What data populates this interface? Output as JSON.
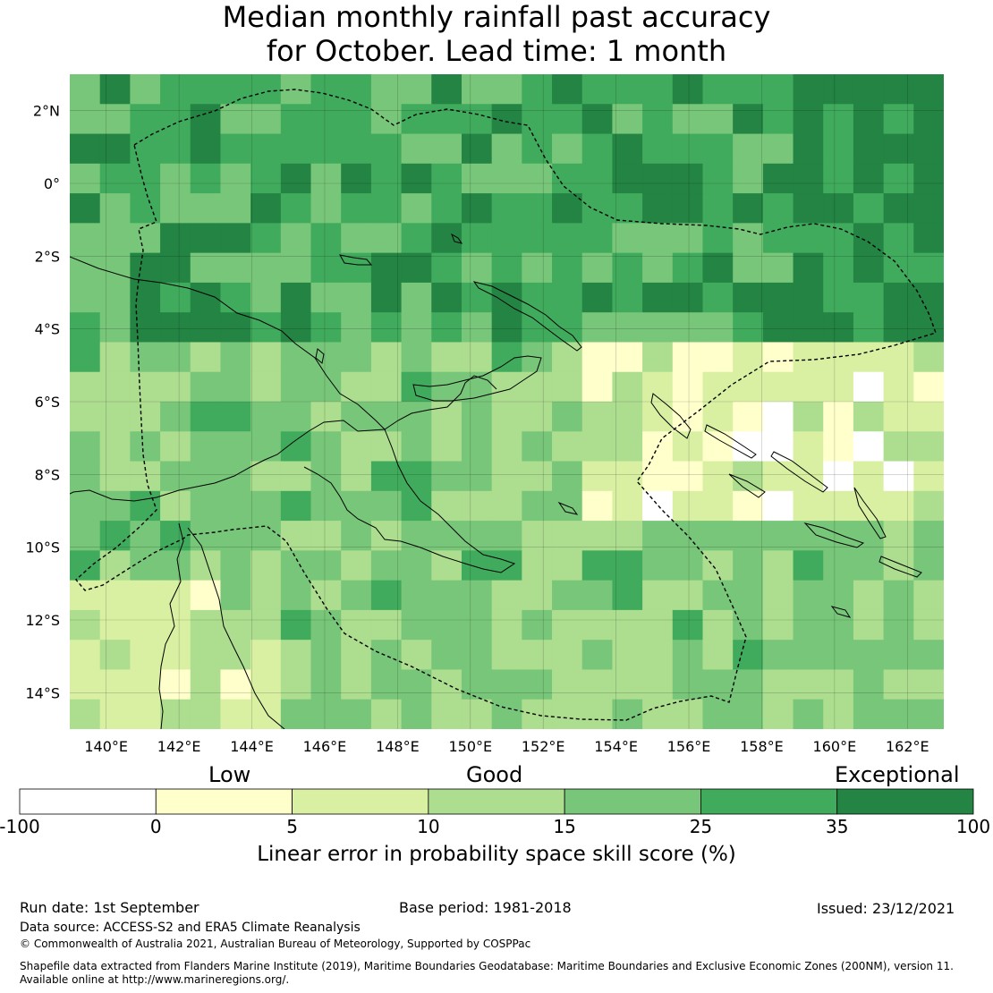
{
  "title": {
    "line1": "Median monthly rainfall past accuracy",
    "line2": "for October. Lead time: 1 month"
  },
  "map": {
    "lon_labels": [
      "140°E",
      "142°E",
      "144°E",
      "146°E",
      "148°E",
      "150°E",
      "152°E",
      "154°E",
      "156°E",
      "158°E",
      "160°E",
      "162°E"
    ],
    "lat_labels": [
      "2°N",
      "0°",
      "2°S",
      "4°S",
      "6°S",
      "8°S",
      "10°S",
      "12°S",
      "14°S"
    ],
    "lon_range": [
      139,
      163
    ],
    "lat_range": [
      -15,
      3
    ]
  },
  "legend": {
    "categories": [
      "Low",
      "Good",
      "Exceptional"
    ],
    "bins": [
      {
        "from": -100,
        "to": 0,
        "color": "#ffffff"
      },
      {
        "from": 0,
        "to": 5,
        "color": "#ffffcc"
      },
      {
        "from": 5,
        "to": 10,
        "color": "#d9f0a3"
      },
      {
        "from": 10,
        "to": 15,
        "color": "#addd8e"
      },
      {
        "from": 15,
        "to": 25,
        "color": "#78c679"
      },
      {
        "from": 25,
        "to": 35,
        "color": "#41ab5d"
      },
      {
        "from": 35,
        "to": 100,
        "color": "#238443"
      }
    ],
    "ticks": [
      "-100",
      "0",
      "5",
      "10",
      "15",
      "25",
      "35",
      "100"
    ],
    "title": "Linear error in probability space skill score (%)"
  },
  "footer": {
    "run_date": "Run date: 1st September",
    "base_period": "Base period: 1981-2018",
    "issued": "Issued: 23/12/2021",
    "data_source": "Data source: ACCESS-S2 and ERA5 Climate Reanalysis",
    "copyright": "© Commonwealth of Australia 2021, Australian Bureau of Meteorology, Supported by COSPPac",
    "shapefile_line1": "Shapefile data extracted from Flanders Marine Institute (2019), Maritime Boundaries Geodatabase: Maritime Boundaries and Exclusive Economic Zones (200NM), version 11.",
    "shapefile_line2": "Available online at http://www.marineregions.org/."
  },
  "chart_data": {
    "type": "heatmap",
    "title": "Median monthly rainfall past accuracy for October. Lead time: 1 month",
    "xlabel": "",
    "ylabel": "",
    "x_range": [
      139,
      163
    ],
    "y_range": [
      -15,
      3
    ],
    "cell_size_deg": 0.833,
    "legend_placement": "bottom",
    "grid": true,
    "colorbar_label": "Linear error in probability space skill score (%)",
    "colorbar_bins": [
      -100,
      0,
      5,
      10,
      15,
      25,
      35,
      100
    ],
    "category_legend": {
      "Low": "0 to 5",
      "Good": "5 to 25",
      "Exceptional": "35 to 100"
    },
    "note": ""
  }
}
